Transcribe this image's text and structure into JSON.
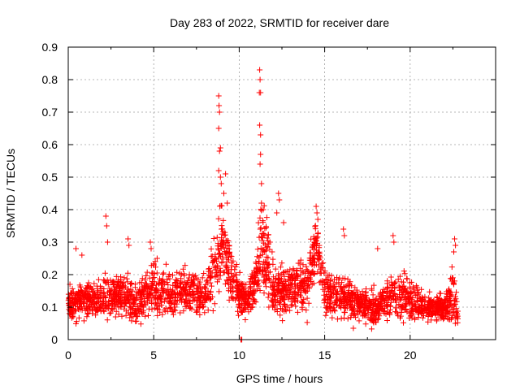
{
  "chart_data": {
    "type": "scatter",
    "title": "Day 283 of 2022, SRMTID for receiver dare",
    "xlabel": "GPS time / hours",
    "ylabel": "SRMTID / TECUs",
    "xlim": [
      0,
      25
    ],
    "ylim": [
      0,
      0.9
    ],
    "xticks": [
      0,
      5,
      10,
      15,
      20
    ],
    "xtick_labels": [
      "0",
      "5",
      "10",
      "15",
      "20"
    ],
    "yticks": [
      0,
      0.1,
      0.2,
      0.3,
      0.4,
      0.5,
      0.6,
      0.7,
      0.8,
      0.9
    ],
    "ytick_labels": [
      "0",
      "0.1",
      "0.2",
      "0.3",
      "0.4",
      "0.5",
      "0.6",
      "0.7",
      "0.8",
      "0.9"
    ],
    "grid": true,
    "marker": "plus",
    "color": "#ff0000",
    "density_profile": {
      "x": [
        0,
        1,
        2,
        3,
        4,
        5,
        6,
        7,
        8,
        8.7,
        9,
        9.5,
        10,
        10.5,
        11,
        11.3,
        12,
        13,
        14,
        14.5,
        15,
        16,
        17,
        18,
        19,
        20,
        21,
        22,
        22.5,
        22.8
      ],
      "y_center": [
        0.11,
        0.12,
        0.13,
        0.14,
        0.11,
        0.16,
        0.13,
        0.15,
        0.13,
        0.25,
        0.3,
        0.2,
        0.14,
        0.12,
        0.18,
        0.3,
        0.15,
        0.15,
        0.17,
        0.3,
        0.15,
        0.13,
        0.11,
        0.1,
        0.14,
        0.12,
        0.1,
        0.1,
        0.13,
        0.07
      ],
      "y_spread": [
        0.05,
        0.05,
        0.06,
        0.07,
        0.05,
        0.08,
        0.06,
        0.06,
        0.06,
        0.12,
        0.13,
        0.08,
        0.06,
        0.05,
        0.08,
        0.15,
        0.08,
        0.07,
        0.08,
        0.09,
        0.07,
        0.06,
        0.05,
        0.05,
        0.07,
        0.06,
        0.04,
        0.04,
        0.08,
        0.03
      ]
    },
    "peaks": [
      {
        "x": 0.1,
        "y": 0.17
      },
      {
        "x": 0.45,
        "y": 0.28
      },
      {
        "x": 0.8,
        "y": 0.26
      },
      {
        "x": 2.2,
        "y": 0.38
      },
      {
        "x": 2.25,
        "y": 0.35
      },
      {
        "x": 2.3,
        "y": 0.3
      },
      {
        "x": 3.5,
        "y": 0.31
      },
      {
        "x": 3.55,
        "y": 0.29
      },
      {
        "x": 4.8,
        "y": 0.3
      },
      {
        "x": 4.85,
        "y": 0.28
      },
      {
        "x": 5.2,
        "y": 0.25
      },
      {
        "x": 8.8,
        "y": 0.75
      },
      {
        "x": 8.82,
        "y": 0.72
      },
      {
        "x": 8.85,
        "y": 0.7
      },
      {
        "x": 8.8,
        "y": 0.65
      },
      {
        "x": 8.9,
        "y": 0.59
      },
      {
        "x": 8.85,
        "y": 0.58
      },
      {
        "x": 8.8,
        "y": 0.52
      },
      {
        "x": 8.9,
        "y": 0.5
      },
      {
        "x": 8.95,
        "y": 0.48
      },
      {
        "x": 9.1,
        "y": 0.45
      },
      {
        "x": 9.2,
        "y": 0.51
      },
      {
        "x": 9.3,
        "y": 0.42
      },
      {
        "x": 11.2,
        "y": 0.83
      },
      {
        "x": 11.22,
        "y": 0.8
      },
      {
        "x": 11.18,
        "y": 0.76
      },
      {
        "x": 11.25,
        "y": 0.76
      },
      {
        "x": 11.2,
        "y": 0.66
      },
      {
        "x": 11.25,
        "y": 0.63
      },
      {
        "x": 11.25,
        "y": 0.57
      },
      {
        "x": 11.22,
        "y": 0.54
      },
      {
        "x": 11.3,
        "y": 0.48
      },
      {
        "x": 11.3,
        "y": 0.42
      },
      {
        "x": 11.4,
        "y": 0.4
      },
      {
        "x": 12.3,
        "y": 0.45
      },
      {
        "x": 12.35,
        "y": 0.43
      },
      {
        "x": 12.2,
        "y": 0.39
      },
      {
        "x": 12.6,
        "y": 0.36
      },
      {
        "x": 14.5,
        "y": 0.41
      },
      {
        "x": 14.55,
        "y": 0.39
      },
      {
        "x": 14.6,
        "y": 0.37
      },
      {
        "x": 16.1,
        "y": 0.34
      },
      {
        "x": 16.15,
        "y": 0.32
      },
      {
        "x": 19.0,
        "y": 0.32
      },
      {
        "x": 19.05,
        "y": 0.3
      },
      {
        "x": 18.1,
        "y": 0.28
      },
      {
        "x": 22.6,
        "y": 0.31
      },
      {
        "x": 22.65,
        "y": 0.29
      },
      {
        "x": 22.55,
        "y": 0.27
      },
      {
        "x": 10.1,
        "y": 0.0
      },
      {
        "x": 10.15,
        "y": 0.0
      }
    ]
  }
}
